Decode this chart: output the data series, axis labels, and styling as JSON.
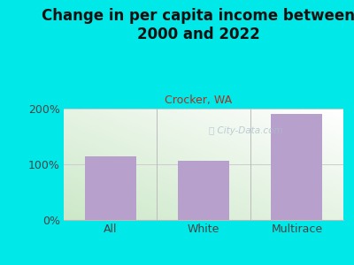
{
  "title": "Change in per capita income between\n2000 and 2022",
  "subtitle": "Crocker, WA",
  "categories": [
    "All",
    "White",
    "Multirace"
  ],
  "values": [
    115,
    107,
    190
  ],
  "bar_color": "#b8a0cc",
  "bg_color": "#00e8e8",
  "chart_bg_start": "#cce8c8",
  "chart_bg_end": "#ffffff",
  "title_color": "#111111",
  "subtitle_color": "#aa3322",
  "axis_label_color": "#444444",
  "watermark_color": "#aabbcc",
  "ylim": [
    0,
    200
  ],
  "yticks": [
    0,
    100,
    200
  ],
  "ytick_labels": [
    "0%",
    "100%",
    "200%"
  ],
  "title_fontsize": 12,
  "subtitle_fontsize": 9,
  "tick_fontsize": 9
}
